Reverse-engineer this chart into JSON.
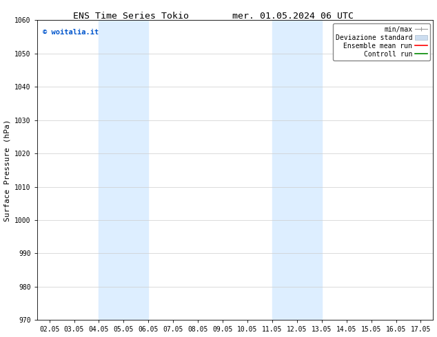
{
  "title_left": "ENS Time Series Tokio",
  "title_right": "mer. 01.05.2024 06 UTC",
  "ylabel": "Surface Pressure (hPa)",
  "ylim": [
    970,
    1060
  ],
  "yticks": [
    970,
    980,
    990,
    1000,
    1010,
    1020,
    1030,
    1040,
    1050,
    1060
  ],
  "xlim_start": 1.5,
  "xlim_end": 17.5,
  "xtick_labels": [
    "02.05",
    "03.05",
    "04.05",
    "05.05",
    "06.05",
    "07.05",
    "08.05",
    "09.05",
    "10.05",
    "11.05",
    "12.05",
    "13.05",
    "14.05",
    "15.05",
    "16.05",
    "17.05"
  ],
  "xtick_positions": [
    2.0,
    3.0,
    4.0,
    5.0,
    6.0,
    7.0,
    8.0,
    9.0,
    10.0,
    11.0,
    12.0,
    13.0,
    14.0,
    15.0,
    16.0,
    17.0
  ],
  "shaded_bands": [
    {
      "x_start": 4.0,
      "x_end": 6.0,
      "color": "#ddeeff"
    },
    {
      "x_start": 11.0,
      "x_end": 13.0,
      "color": "#ddeeff"
    }
  ],
  "watermark_text": "© woitalia.it",
  "watermark_color": "#0055cc",
  "bg_color": "#ffffff",
  "spine_color": "#000000",
  "grid_color": "#cccccc",
  "title_fontsize": 9.5,
  "tick_fontsize": 7,
  "label_fontsize": 8,
  "legend_fontsize": 7,
  "watermark_fontsize": 7.5
}
